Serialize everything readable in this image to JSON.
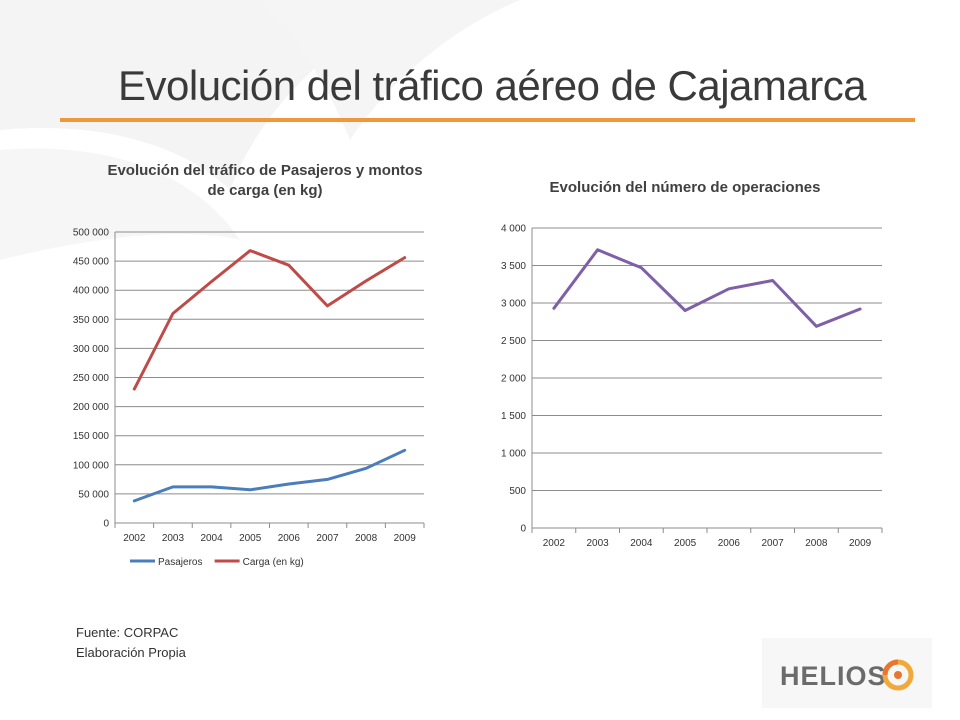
{
  "slide": {
    "title": "Evolución del tráfico aéreo de Cajamarca",
    "source_line": "Fuente: CORPAC",
    "elaboration_line": "Elaboración Propia",
    "logo_text": "HELIOS",
    "accent_color": "#f0973a"
  },
  "chart_data": [
    {
      "type": "line",
      "title": "Evolución del tráfico de Pasajeros y montos de carga (en kg)",
      "title_lines": [
        "Evolución del tráfico de Pasajeros y montos",
        "de carga (en kg)"
      ],
      "categories": [
        "2002",
        "2003",
        "2004",
        "2005",
        "2006",
        "2007",
        "2008",
        "2009"
      ],
      "series": [
        {
          "name": "Pasajeros",
          "color": "#4a7ebb",
          "values": [
            38000,
            62000,
            62000,
            57000,
            67000,
            75000,
            94000,
            125000
          ]
        },
        {
          "name": "Carga (en kg)",
          "color": "#be4b48",
          "values": [
            230000,
            360000,
            415000,
            468000,
            443000,
            373000,
            416000,
            456000
          ]
        }
      ],
      "ylim": [
        0,
        500000
      ],
      "yticks": [
        0,
        50000,
        100000,
        150000,
        200000,
        250000,
        300000,
        350000,
        400000,
        450000,
        500000
      ],
      "ytick_labels": [
        "0",
        "50 000",
        "100 000",
        "150 000",
        "200 000",
        "250 000",
        "300 000",
        "350 000",
        "400 000",
        "450 000",
        "500 000"
      ],
      "grid": true,
      "legend": "bottom"
    },
    {
      "type": "line",
      "title": "Evolución del número de operaciones",
      "categories": [
        "2002",
        "2003",
        "2004",
        "2005",
        "2006",
        "2007",
        "2008",
        "2009"
      ],
      "series": [
        {
          "color": "#7f5fa8",
          "values": [
            2930,
            3710,
            3470,
            2900,
            3190,
            3300,
            2690,
            2920
          ]
        }
      ],
      "ylim": [
        0,
        4000
      ],
      "yticks": [
        0,
        500,
        1000,
        1500,
        2000,
        2500,
        3000,
        3500,
        4000
      ],
      "ytick_labels": [
        "0",
        "500",
        "1 000",
        "1 500",
        "2 000",
        "2 500",
        "3 000",
        "3 500",
        "4 000"
      ],
      "grid": true,
      "legend": "none"
    }
  ]
}
